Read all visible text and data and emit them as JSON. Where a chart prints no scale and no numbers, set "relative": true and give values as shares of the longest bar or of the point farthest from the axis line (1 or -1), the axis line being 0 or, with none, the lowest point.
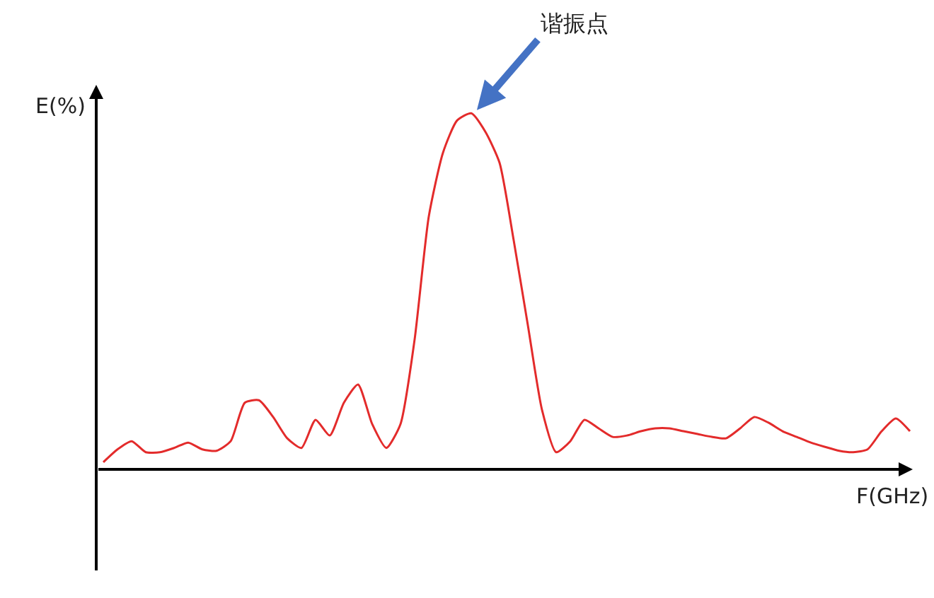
{
  "chart_data": {
    "type": "line",
    "xlabel": "F(GHz)",
    "ylabel": "E(%)",
    "relative": true,
    "categories": [
      null,
      null,
      null,
      null,
      null,
      null,
      null,
      null,
      null,
      null,
      null,
      null,
      null,
      null,
      null,
      null,
      null,
      null,
      null,
      null,
      null,
      null,
      null,
      null,
      null,
      null,
      null,
      null,
      null,
      null,
      null,
      null,
      null,
      null,
      null,
      null,
      null,
      null,
      null,
      null,
      null,
      null,
      null,
      null,
      null,
      null,
      null,
      null,
      null,
      null,
      null,
      null,
      null,
      null,
      null,
      null,
      null,
      null
    ],
    "series": [
      {
        "color": "#e32b2b",
        "values": [
          0.02,
          0.056,
          0.079,
          0.048,
          0.048,
          0.06,
          0.075,
          0.056,
          0.052,
          0.079,
          0.187,
          0.194,
          0.147,
          0.087,
          0.06,
          0.139,
          0.095,
          0.187,
          0.238,
          0.127,
          0.06,
          0.127,
          0.365,
          0.71,
          0.889,
          0.98,
          1,
          0.948,
          0.861,
          0.643,
          0.405,
          0.167,
          0.048,
          0.079,
          0.139,
          0.115,
          0.091,
          0.095,
          0.107,
          0.115,
          0.115,
          0.107,
          0.099,
          0.091,
          0.087,
          0.115,
          0.147,
          0.131,
          0.107,
          0.091,
          0.075,
          0.063,
          0.052,
          0.048,
          0.056,
          0.107,
          0.143,
          0.107
        ]
      }
    ],
    "annotations": [
      "谐振点"
    ]
  }
}
